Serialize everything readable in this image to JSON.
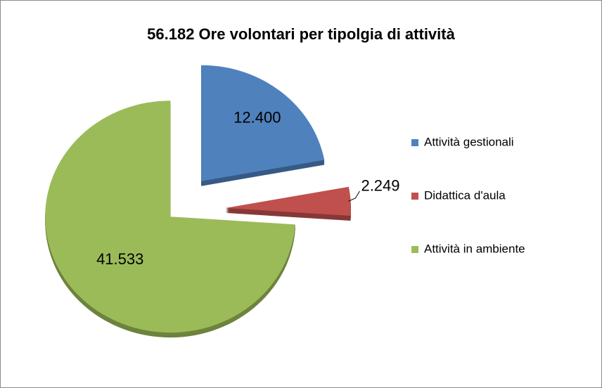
{
  "chart_data": {
    "type": "pie",
    "title": "56.182 Ore volontari per tipolgia di attività",
    "categories": [
      "Attività gestionali",
      "Didattica d'aula",
      "Attività in ambiente"
    ],
    "values": [
      12400,
      2249,
      41533
    ],
    "value_labels": [
      "12.400",
      "2.249",
      "41.533"
    ],
    "colors": [
      "#4f81bd",
      "#c0504d",
      "#9bbb59"
    ],
    "legend": "right"
  }
}
